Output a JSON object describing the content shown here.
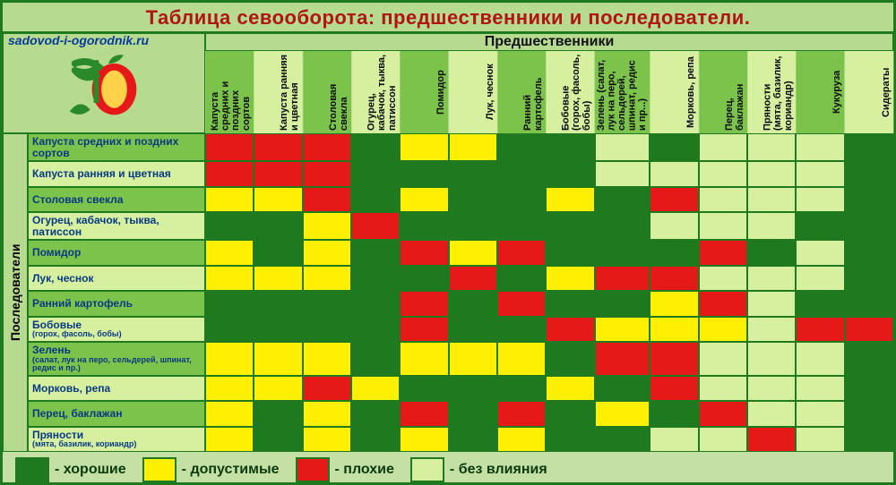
{
  "title": "Таблица севооборота: предшественники и последователи.",
  "site_url": "sadovod-i-ogorodnik.ru",
  "headers": {
    "predecessors": "Предшественники",
    "successors": "Последователи"
  },
  "colors": {
    "good": "#1f7a1f",
    "ok": "#ffef00",
    "bad": "#e61919",
    "none": "#d6f0a0",
    "border": "#1f7a1f",
    "page_bg": "#c5e0a5",
    "header_light": "#b6db8f",
    "col_dark": "#7cc34b",
    "col_light": "#d6f0a0",
    "title_color": "#b01414",
    "rowlabel_color": "#083a83",
    "url_color": "#0a3a9a"
  },
  "legend": [
    {
      "label": "хорошие",
      "color_key": "good"
    },
    {
      "label": "допустимые",
      "color_key": "ok"
    },
    {
      "label": "плохие",
      "color_key": "bad"
    },
    {
      "label": "без влияния",
      "color_key": "none"
    }
  ],
  "columns": [
    "Капуста средних и поздних сортов",
    "Капуста ранняя и цветная",
    "Столовая свекла",
    "Огурец, кабачок, тыква, патиссон",
    "Помидор",
    "Лук, чеснок",
    "Ранний картофель",
    "Бобовые (горох, фасоль, бобы)",
    "Зелень (салат, лук на перо, сельдерей, шпинат, редис и пр...)",
    "Морковь, репа",
    "Перец, баклажан",
    "Пряности (мята, базилик, кориандр)",
    "Кукуруза",
    "Сидераты"
  ],
  "rows": [
    {
      "label": "Капуста средних и поздних сортов"
    },
    {
      "label": "Капуста ранняя и цветная"
    },
    {
      "label": "Столовая свекла"
    },
    {
      "label": "Огурец, кабачок, тыква, патиссон"
    },
    {
      "label": "Помидор"
    },
    {
      "label": "Лук, чеснок"
    },
    {
      "label": "Ранний картофель"
    },
    {
      "label": "Бобовые",
      "sub": "(горох, фасоль, бобы)"
    },
    {
      "label": "Зелень",
      "sub": "(салат, лук на перо, сельдерей, шпинат, редис и пр.)"
    },
    {
      "label": "Морковь, репа"
    },
    {
      "label": "Перец, баклажан"
    },
    {
      "label": "Пряности",
      "sub": "(мята, базилик, кориандр)"
    }
  ],
  "matrix": [
    [
      "bad",
      "bad",
      "bad",
      "good",
      "ok",
      "ok",
      "good",
      "good",
      "none",
      "good",
      "none",
      "none",
      "none",
      "good"
    ],
    [
      "bad",
      "bad",
      "bad",
      "good",
      "good",
      "good",
      "good",
      "good",
      "none",
      "none",
      "none",
      "none",
      "none",
      "good"
    ],
    [
      "ok",
      "ok",
      "bad",
      "good",
      "ok",
      "good",
      "good",
      "ok",
      "good",
      "bad",
      "none",
      "none",
      "none",
      "good"
    ],
    [
      "good",
      "good",
      "ok",
      "bad",
      "good",
      "good",
      "good",
      "good",
      "good",
      "none",
      "none",
      "none",
      "good",
      "good"
    ],
    [
      "ok",
      "good",
      "ok",
      "good",
      "bad",
      "ok",
      "bad",
      "good",
      "good",
      "good",
      "bad",
      "good",
      "none",
      "good"
    ],
    [
      "ok",
      "ok",
      "ok",
      "good",
      "good",
      "bad",
      "good",
      "ok",
      "bad",
      "bad",
      "none",
      "none",
      "none",
      "good"
    ],
    [
      "good",
      "good",
      "good",
      "good",
      "bad",
      "good",
      "bad",
      "good",
      "good",
      "ok",
      "bad",
      "none",
      "good",
      "good"
    ],
    [
      "good",
      "good",
      "good",
      "good",
      "bad",
      "good",
      "good",
      "bad",
      "ok",
      "ok",
      "ok",
      "none",
      "bad",
      "bad"
    ],
    [
      "ok",
      "ok",
      "ok",
      "good",
      "ok",
      "ok",
      "ok",
      "good",
      "bad",
      "bad",
      "none",
      "none",
      "none",
      "good"
    ],
    [
      "ok",
      "ok",
      "bad",
      "ok",
      "good",
      "good",
      "good",
      "ok",
      "good",
      "bad",
      "none",
      "none",
      "none",
      "good"
    ],
    [
      "ok",
      "good",
      "ok",
      "good",
      "bad",
      "good",
      "bad",
      "good",
      "ok",
      "good",
      "bad",
      "none",
      "none",
      "good"
    ],
    [
      "ok",
      "good",
      "ok",
      "good",
      "ok",
      "good",
      "ok",
      "good",
      "good",
      "none",
      "none",
      "bad",
      "none",
      "good"
    ]
  ]
}
